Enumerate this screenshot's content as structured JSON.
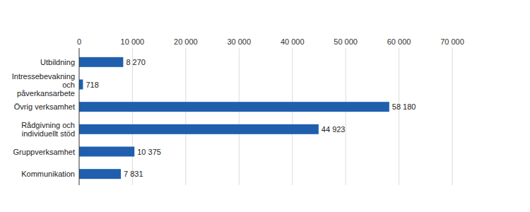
{
  "chart_data": {
    "type": "bar",
    "orientation": "horizontal",
    "categories": [
      "Utbildning",
      "Intressebevakning och påverkansarbete",
      "Övrig verksamhet",
      "Rådgivning och individuellt stöd",
      "Gruppverksamhet",
      "Kommunikation"
    ],
    "values": [
      8270,
      718,
      58180,
      44923,
      10375,
      7831
    ],
    "value_labels": [
      "8 270",
      "718",
      "58 180",
      "44 923",
      "10 375",
      "7 831"
    ],
    "color": "#1f5fae",
    "xlim": [
      0,
      70000
    ],
    "xticks": [
      0,
      {
        "value": 10000,
        "label": "10 000"
      },
      {
        "value": 20000,
        "label": "20 000"
      },
      {
        "value": 30000,
        "label": "30 000"
      },
      {
        "value": 40000,
        "label": "40 000"
      },
      {
        "value": 50000,
        "label": "50 000"
      },
      {
        "value": 60000,
        "label": "60 000"
      },
      {
        "value": 70000,
        "label": "70 000"
      }
    ],
    "grid": true,
    "data_labels": true
  }
}
